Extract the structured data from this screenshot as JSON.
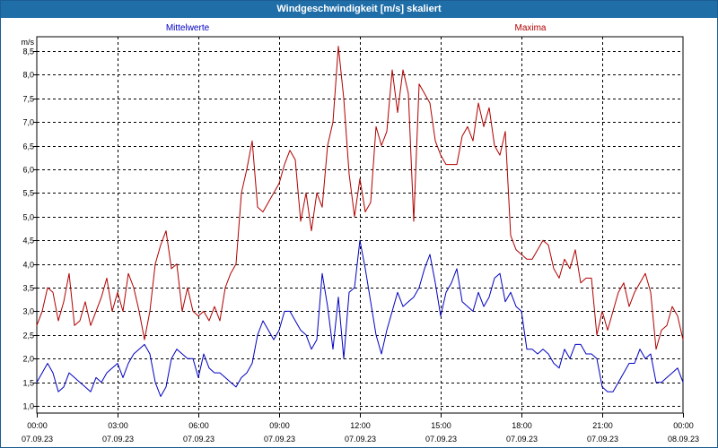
{
  "window": {
    "title": "Windgeschwindigkeit [m/s] skaliert"
  },
  "chart_data": {
    "type": "line",
    "title": "Windgeschwindigkeit [m/s] skaliert",
    "ylabel": "m/s",
    "ylim": [
      0.85,
      8.8
    ],
    "yticks": [
      1.0,
      1.5,
      2.0,
      2.5,
      3.0,
      3.5,
      4.0,
      4.5,
      5.0,
      5.5,
      6.0,
      6.5,
      7.0,
      7.5,
      8.0,
      8.5
    ],
    "ytick_labels": [
      "1,0",
      "1,5",
      "2,0",
      "2,5",
      "3,0",
      "3,5",
      "4,0",
      "4,5",
      "5,0",
      "5,5",
      "6,0",
      "6,5",
      "7,0",
      "7,5",
      "8,0",
      "8,5"
    ],
    "xlim_hours": [
      0,
      24
    ],
    "xticks": [
      {
        "time": "00:00",
        "date": "07.09.23"
      },
      {
        "time": "03:00",
        "date": "07.09.23"
      },
      {
        "time": "06:00",
        "date": "07.09.23"
      },
      {
        "time": "09:00",
        "date": "07.09.23"
      },
      {
        "time": "12:00",
        "date": "07.09.23"
      },
      {
        "time": "15:00",
        "date": "07.09.23"
      },
      {
        "time": "18:00",
        "date": "07.09.23"
      },
      {
        "time": "21:00",
        "date": "07.09.23"
      },
      {
        "time": "00:00",
        "date": "08.09.23"
      }
    ],
    "grid": true,
    "legend_position": "top",
    "series": [
      {
        "name": "Mittelwerte",
        "color": "#0000c0",
        "x": [
          0.0,
          0.2,
          0.4,
          0.6,
          0.8,
          1.0,
          1.2,
          1.4,
          1.6,
          1.8,
          2.0,
          2.2,
          2.4,
          2.6,
          2.8,
          3.0,
          3.2,
          3.4,
          3.6,
          3.8,
          4.0,
          4.2,
          4.4,
          4.6,
          4.8,
          5.0,
          5.2,
          5.4,
          5.6,
          5.8,
          6.0,
          6.2,
          6.4,
          6.6,
          6.8,
          7.0,
          7.2,
          7.4,
          7.6,
          7.8,
          8.0,
          8.2,
          8.4,
          8.6,
          8.8,
          9.0,
          9.2,
          9.4,
          9.6,
          9.8,
          10.0,
          10.2,
          10.4,
          10.6,
          10.8,
          11.0,
          11.2,
          11.4,
          11.6,
          11.8,
          12.0,
          12.2,
          12.4,
          12.6,
          12.8,
          13.0,
          13.2,
          13.4,
          13.6,
          13.8,
          14.0,
          14.2,
          14.4,
          14.6,
          14.8,
          15.0,
          15.2,
          15.4,
          15.6,
          15.8,
          16.0,
          16.2,
          16.4,
          16.6,
          16.8,
          17.0,
          17.2,
          17.4,
          17.6,
          17.8,
          18.0,
          18.2,
          18.4,
          18.6,
          18.8,
          19.0,
          19.2,
          19.4,
          19.6,
          19.8,
          20.0,
          20.2,
          20.4,
          20.6,
          20.8,
          21.0,
          21.2,
          21.4,
          21.6,
          21.8,
          22.0,
          22.2,
          22.4,
          22.6,
          22.8,
          23.0,
          23.2,
          23.4,
          23.6,
          23.8,
          24.0
        ],
        "y": [
          1.5,
          1.7,
          1.9,
          1.7,
          1.3,
          1.4,
          1.7,
          1.6,
          1.5,
          1.4,
          1.3,
          1.6,
          1.5,
          1.7,
          1.8,
          1.9,
          1.6,
          1.9,
          2.1,
          2.2,
          2.3,
          2.1,
          1.5,
          1.2,
          1.4,
          2.0,
          2.2,
          2.1,
          2.0,
          2.0,
          1.6,
          2.1,
          1.8,
          1.7,
          1.7,
          1.6,
          1.5,
          1.4,
          1.6,
          1.7,
          1.9,
          2.5,
          2.8,
          2.6,
          2.4,
          2.6,
          3.0,
          3.0,
          2.8,
          2.6,
          2.5,
          2.2,
          2.4,
          3.8,
          3.1,
          2.2,
          3.3,
          2.0,
          3.4,
          3.5,
          4.5,
          3.9,
          3.2,
          2.5,
          2.1,
          2.6,
          3.0,
          3.4,
          3.1,
          3.2,
          3.3,
          3.5,
          3.9,
          4.2,
          3.6,
          2.9,
          3.4,
          3.6,
          3.9,
          3.2,
          3.1,
          3.0,
          3.4,
          3.1,
          3.3,
          3.7,
          3.8,
          3.2,
          3.4,
          3.1,
          3.0,
          2.2,
          2.2,
          2.1,
          2.2,
          2.1,
          1.9,
          1.8,
          2.2,
          2.0,
          2.3,
          2.3,
          2.1,
          2.1,
          2.0,
          1.4,
          1.3,
          1.3,
          1.5,
          1.7,
          1.9,
          1.9,
          2.2,
          2.0,
          2.1,
          1.5,
          1.5,
          1.6,
          1.7,
          1.8,
          1.5
        ]
      },
      {
        "name": "Maxima",
        "color": "#b00000",
        "x": [
          0.0,
          0.2,
          0.4,
          0.6,
          0.8,
          1.0,
          1.2,
          1.4,
          1.6,
          1.8,
          2.0,
          2.2,
          2.4,
          2.6,
          2.8,
          3.0,
          3.2,
          3.4,
          3.6,
          3.8,
          4.0,
          4.2,
          4.4,
          4.6,
          4.8,
          5.0,
          5.2,
          5.4,
          5.6,
          5.8,
          6.0,
          6.2,
          6.4,
          6.6,
          6.8,
          7.0,
          7.2,
          7.4,
          7.6,
          7.8,
          8.0,
          8.2,
          8.4,
          8.6,
          8.8,
          9.0,
          9.2,
          9.4,
          9.6,
          9.8,
          10.0,
          10.2,
          10.4,
          10.6,
          10.8,
          11.0,
          11.2,
          11.4,
          11.6,
          11.8,
          12.0,
          12.2,
          12.4,
          12.6,
          12.8,
          13.0,
          13.2,
          13.4,
          13.6,
          13.8,
          14.0,
          14.2,
          14.4,
          14.6,
          14.8,
          15.0,
          15.2,
          15.4,
          15.6,
          15.8,
          16.0,
          16.2,
          16.4,
          16.6,
          16.8,
          17.0,
          17.2,
          17.4,
          17.6,
          17.8,
          18.0,
          18.2,
          18.4,
          18.6,
          18.8,
          19.0,
          19.2,
          19.4,
          19.6,
          19.8,
          20.0,
          20.2,
          20.4,
          20.6,
          20.8,
          21.0,
          21.2,
          21.4,
          21.6,
          21.8,
          22.0,
          22.2,
          22.4,
          22.6,
          22.8,
          23.0,
          23.2,
          23.4,
          23.6,
          23.8,
          24.0
        ],
        "y": [
          2.7,
          3.0,
          3.5,
          3.4,
          2.8,
          3.2,
          3.8,
          2.7,
          2.8,
          3.2,
          2.7,
          3.0,
          3.3,
          3.7,
          3.0,
          3.4,
          3.0,
          3.8,
          3.5,
          3.0,
          2.4,
          3.0,
          4.0,
          4.4,
          4.7,
          3.9,
          4.0,
          3.0,
          3.5,
          3.0,
          2.9,
          3.0,
          2.8,
          3.1,
          2.8,
          3.5,
          3.8,
          4.0,
          5.5,
          6.0,
          6.6,
          5.2,
          5.1,
          5.3,
          5.5,
          5.7,
          6.1,
          6.4,
          6.2,
          4.9,
          5.5,
          4.7,
          5.5,
          5.2,
          6.5,
          7.0,
          8.6,
          7.5,
          5.9,
          5.0,
          5.8,
          5.1,
          5.3,
          6.9,
          6.5,
          6.8,
          8.1,
          7.2,
          8.1,
          7.6,
          4.9,
          7.8,
          7.6,
          7.4,
          6.6,
          6.3,
          6.1,
          6.1,
          6.1,
          6.7,
          6.9,
          6.6,
          7.4,
          6.9,
          7.3,
          6.5,
          6.3,
          6.8,
          4.6,
          4.3,
          4.2,
          4.1,
          4.1,
          4.3,
          4.5,
          4.4,
          3.9,
          3.7,
          4.1,
          3.9,
          4.3,
          3.6,
          3.7,
          3.7,
          2.5,
          3.0,
          2.6,
          3.0,
          3.4,
          3.6,
          3.1,
          3.4,
          3.6,
          3.8,
          3.4,
          2.2,
          2.6,
          2.7,
          3.1,
          2.9,
          2.4
        ]
      }
    ]
  }
}
